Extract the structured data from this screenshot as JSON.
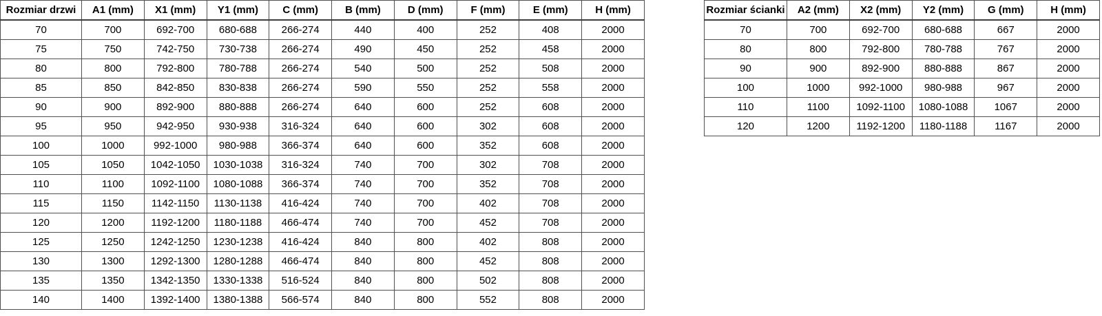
{
  "page": {
    "background": "#ffffff",
    "text_color": "#000000",
    "border_color": "#4f4f4f"
  },
  "tables": {
    "door": {
      "title_column": "Rozmiar drzwi",
      "headers": [
        "Rozmiar drzwi",
        "A1 (mm)",
        "X1 (mm)",
        "Y1 (mm)",
        "C (mm)",
        "B (mm)",
        "D (mm)",
        "F (mm)",
        "E (mm)",
        "H (mm)"
      ],
      "rows": [
        [
          "70",
          "700",
          "692-700",
          "680-688",
          "266-274",
          "440",
          "400",
          "252",
          "408",
          "2000"
        ],
        [
          "75",
          "750",
          "742-750",
          "730-738",
          "266-274",
          "490",
          "450",
          "252",
          "458",
          "2000"
        ],
        [
          "80",
          "800",
          "792-800",
          "780-788",
          "266-274",
          "540",
          "500",
          "252",
          "508",
          "2000"
        ],
        [
          "85",
          "850",
          "842-850",
          "830-838",
          "266-274",
          "590",
          "550",
          "252",
          "558",
          "2000"
        ],
        [
          "90",
          "900",
          "892-900",
          "880-888",
          "266-274",
          "640",
          "600",
          "252",
          "608",
          "2000"
        ],
        [
          "95",
          "950",
          "942-950",
          "930-938",
          "316-324",
          "640",
          "600",
          "302",
          "608",
          "2000"
        ],
        [
          "100",
          "1000",
          "992-1000",
          "980-988",
          "366-374",
          "640",
          "600",
          "352",
          "608",
          "2000"
        ],
        [
          "105",
          "1050",
          "1042-1050",
          "1030-1038",
          "316-324",
          "740",
          "700",
          "302",
          "708",
          "2000"
        ],
        [
          "110",
          "1100",
          "1092-1100",
          "1080-1088",
          "366-374",
          "740",
          "700",
          "352",
          "708",
          "2000"
        ],
        [
          "115",
          "1150",
          "1142-1150",
          "1130-1138",
          "416-424",
          "740",
          "700",
          "402",
          "708",
          "2000"
        ],
        [
          "120",
          "1200",
          "1192-1200",
          "1180-1188",
          "466-474",
          "740",
          "700",
          "452",
          "708",
          "2000"
        ],
        [
          "125",
          "1250",
          "1242-1250",
          "1230-1238",
          "416-424",
          "840",
          "800",
          "402",
          "808",
          "2000"
        ],
        [
          "130",
          "1300",
          "1292-1300",
          "1280-1288",
          "466-474",
          "840",
          "800",
          "452",
          "808",
          "2000"
        ],
        [
          "135",
          "1350",
          "1342-1350",
          "1330-1338",
          "516-524",
          "840",
          "800",
          "502",
          "808",
          "2000"
        ],
        [
          "140",
          "1400",
          "1392-1400",
          "1380-1388",
          "566-574",
          "840",
          "800",
          "552",
          "808",
          "2000"
        ]
      ]
    },
    "wall": {
      "title_column": "Rozmiar ścianki",
      "headers": [
        "Rozmiar ścianki",
        "A2 (mm)",
        "X2 (mm)",
        "Y2 (mm)",
        "G (mm)",
        "H (mm)"
      ],
      "rows": [
        [
          "70",
          "700",
          "692-700",
          "680-688",
          "667",
          "2000"
        ],
        [
          "80",
          "800",
          "792-800",
          "780-788",
          "767",
          "2000"
        ],
        [
          "90",
          "900",
          "892-900",
          "880-888",
          "867",
          "2000"
        ],
        [
          "100",
          "1000",
          "992-1000",
          "980-988",
          "967",
          "2000"
        ],
        [
          "110",
          "1100",
          "1092-1100",
          "1080-1088",
          "1067",
          "2000"
        ],
        [
          "120",
          "1200",
          "1192-1200",
          "1180-1188",
          "1167",
          "2000"
        ]
      ]
    }
  }
}
